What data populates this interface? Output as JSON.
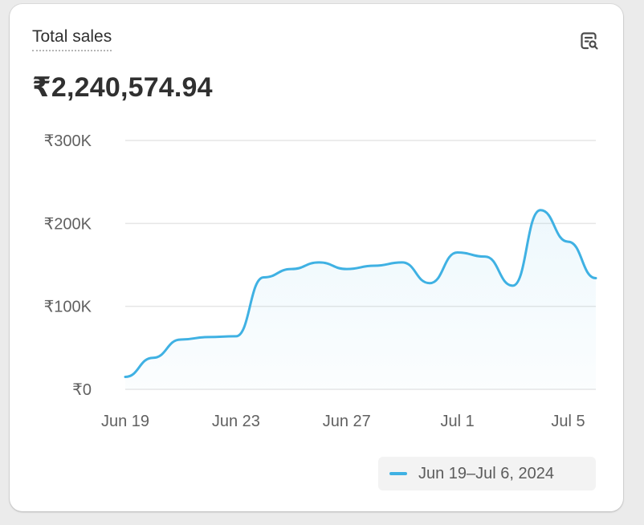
{
  "card": {
    "title": "Total sales",
    "total_value": "₹2,240,574.94",
    "icon": "search-report-icon"
  },
  "legend": {
    "label": "Jun 19–Jul 6, 2024",
    "color": "#3fb1e3"
  },
  "chart_data": {
    "type": "area",
    "x_start": "Jun 19",
    "x_ticks": [
      {
        "label": "Jun 19",
        "day": 0
      },
      {
        "label": "Jun 23",
        "day": 4
      },
      {
        "label": "Jun 27",
        "day": 8
      },
      {
        "label": "Jul 1",
        "day": 12
      },
      {
        "label": "Jul 5",
        "day": 16
      }
    ],
    "y_ticks": [
      {
        "label": "₹0",
        "value": 0
      },
      {
        "label": "₹100K",
        "value": 100000
      },
      {
        "label": "₹200K",
        "value": 200000
      },
      {
        "label": "₹300K",
        "value": 300000
      }
    ],
    "ylim": [
      0,
      300000
    ],
    "series": [
      {
        "color": "#3fb1e3",
        "values": [
          15000,
          38000,
          60000,
          63000,
          64000,
          135000,
          145000,
          153000,
          145000,
          149000,
          153000,
          128000,
          165000,
          160000,
          125000,
          216000,
          178000,
          134000
        ]
      }
    ],
    "grid": true,
    "legend_position": "bottom-right"
  }
}
